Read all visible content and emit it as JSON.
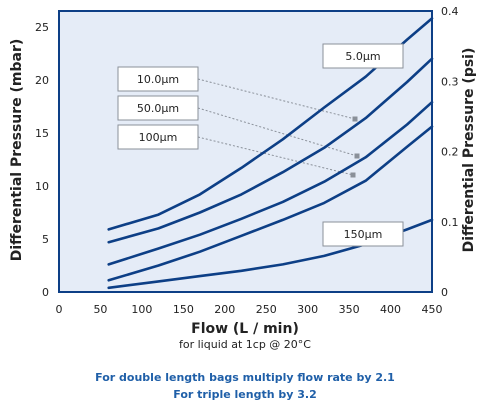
{
  "chart_data": {
    "type": "line",
    "xlabel": "Flow (L / min)",
    "x_note": "for liquid at 1cp @ 20°C",
    "ylabel_left": "Differential Pressure (mbar)",
    "ylabel_right": "Differential Pressure (psi)",
    "xlim": [
      0,
      450
    ],
    "ylim_left": [
      0,
      26.5
    ],
    "ylim_right": [
      0,
      0.4
    ],
    "x_ticks": [
      "0",
      "50",
      "100",
      "150",
      "200",
      "250",
      "300",
      "350",
      "400",
      "450"
    ],
    "x_tick_values": [
      0,
      50,
      100,
      150,
      200,
      250,
      300,
      350,
      400,
      450
    ],
    "y_ticks_left": [
      "0",
      "5",
      "10",
      "15",
      "20",
      "25"
    ],
    "y_tick_values_left": [
      0,
      5,
      10,
      15,
      20,
      25
    ],
    "y_ticks_right": [
      "0",
      "0.1",
      "0.2",
      "0.3",
      "0.4"
    ],
    "y_tick_values_right": [
      0,
      0.1,
      0.2,
      0.3,
      0.4
    ],
    "series": [
      {
        "name": "5.0µm",
        "x": [
          60,
          120,
          170,
          220,
          270,
          320,
          370,
          420,
          450
        ],
        "y": [
          5.9,
          7.3,
          9.2,
          11.7,
          14.4,
          17.4,
          20.3,
          23.8,
          25.8
        ]
      },
      {
        "name": "10.0µm",
        "x": [
          60,
          120,
          170,
          220,
          270,
          320,
          370,
          420,
          450
        ],
        "y": [
          4.7,
          6.0,
          7.5,
          9.2,
          11.3,
          13.6,
          16.4,
          19.8,
          22.0
        ]
      },
      {
        "name": "50.0µm",
        "x": [
          60,
          120,
          170,
          220,
          270,
          320,
          370,
          420,
          450
        ],
        "y": [
          2.6,
          4.1,
          5.4,
          6.9,
          8.5,
          10.4,
          12.7,
          15.8,
          17.9
        ]
      },
      {
        "name": "100µm",
        "x": [
          60,
          120,
          170,
          220,
          270,
          320,
          370,
          420,
          450
        ],
        "y": [
          1.1,
          2.5,
          3.8,
          5.3,
          6.8,
          8.4,
          10.5,
          13.7,
          15.6
        ]
      },
      {
        "name": "150µm",
        "x": [
          60,
          120,
          170,
          220,
          270,
          320,
          370,
          420,
          450
        ],
        "y": [
          0.4,
          1.0,
          1.5,
          2.0,
          2.6,
          3.4,
          4.5,
          5.9,
          6.8
        ]
      }
    ],
    "labels": [
      {
        "text": "5.0µm"
      },
      {
        "text": "10.0µm"
      },
      {
        "text": "50.0µm"
      },
      {
        "text": "100µm"
      },
      {
        "text": "150µm"
      }
    ],
    "footer_lines": [
      "For double length bags multiply flow rate by 2.1",
      "For triple length by 3.2"
    ],
    "colors": {
      "line": "#0d3f86",
      "plot_bg": "#e5ecf7",
      "frame": "#0d3f86",
      "leader": "#8a9099",
      "footer": "#1f5fa8"
    }
  }
}
